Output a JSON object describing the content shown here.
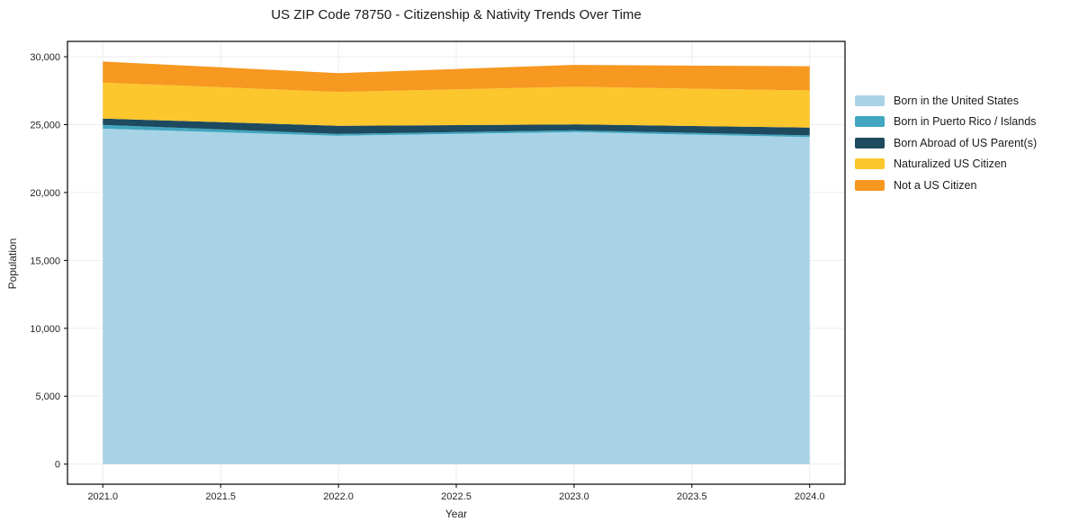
{
  "chart_data": {
    "type": "area",
    "stacked": true,
    "title": "US ZIP Code 78750 - Citizenship & Nativity Trends Over Time",
    "xlabel": "Year",
    "ylabel": "Population",
    "x": [
      2021,
      2022,
      2023,
      2024
    ],
    "series": [
      {
        "name": "Born in the United States",
        "color": "#a8d3e7",
        "values": [
          24700,
          24180,
          24450,
          24080
        ]
      },
      {
        "name": "Born in Puerto Rico / Islands",
        "color": "#41a6bf",
        "values": [
          280,
          135,
          130,
          130
        ]
      },
      {
        "name": "Born Abroad of US Parent(s)",
        "color": "#1d4a5f",
        "values": [
          470,
          600,
          440,
          570
        ]
      },
      {
        "name": "Naturalized US Citizen",
        "color": "#fcc62d",
        "values": [
          2650,
          2495,
          2770,
          2740
        ]
      },
      {
        "name": "Not a US Citizen",
        "color": "#f79820",
        "values": [
          1550,
          1380,
          1610,
          1780
        ]
      }
    ],
    "xlim": [
      2020.85,
      2024.15
    ],
    "ylim": [
      -1480,
      31130
    ],
    "xticks": [
      2021.0,
      2021.5,
      2022.0,
      2022.5,
      2023.0,
      2023.5,
      2024.0
    ],
    "xtick_labels": [
      "2021.0",
      "2021.5",
      "2022.0",
      "2022.5",
      "2023.0",
      "2023.5",
      "2024.0"
    ],
    "yticks": [
      0,
      5000,
      10000,
      15000,
      20000,
      25000,
      30000
    ],
    "ytick_labels": [
      "0",
      "5,000",
      "10,000",
      "15,000",
      "20,000",
      "25,000",
      "30,000"
    ],
    "grid": true,
    "legend_position": "right-outside"
  }
}
